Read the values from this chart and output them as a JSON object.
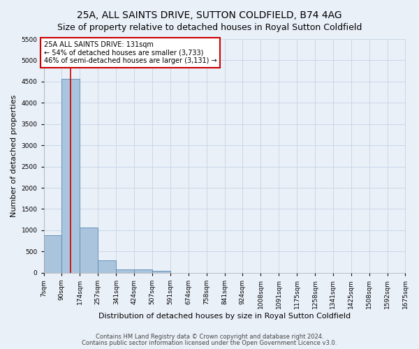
{
  "title": "25A, ALL SAINTS DRIVE, SUTTON COLDFIELD, B74 4AG",
  "subtitle": "Size of property relative to detached houses in Royal Sutton Coldfield",
  "xlabel": "Distribution of detached houses by size in Royal Sutton Coldfield",
  "ylabel": "Number of detached properties",
  "bin_edges": [
    7,
    90,
    174,
    257,
    341,
    424,
    507,
    591,
    674,
    758,
    841,
    924,
    1008,
    1091,
    1175,
    1258,
    1341,
    1425,
    1508,
    1592,
    1675
  ],
  "bar_heights": [
    880,
    4560,
    1060,
    290,
    80,
    80,
    50,
    0,
    0,
    0,
    0,
    0,
    0,
    0,
    0,
    0,
    0,
    0,
    0,
    0
  ],
  "bar_color": "#aac4dd",
  "bar_edge_color": "#5a8ab0",
  "grid_color": "#c8d8e8",
  "background_color": "#eaf0f8",
  "property_size": 131,
  "property_line_color": "#cc0000",
  "annotation_text": "25A ALL SAINTS DRIVE: 131sqm\n← 54% of detached houses are smaller (3,733)\n46% of semi-detached houses are larger (3,131) →",
  "annotation_box_color": "#ffffff",
  "annotation_border_color": "#cc0000",
  "ylim": [
    0,
    5500
  ],
  "yticks": [
    0,
    500,
    1000,
    1500,
    2000,
    2500,
    3000,
    3500,
    4000,
    4500,
    5000,
    5500
  ],
  "tick_labels": [
    "7sqm",
    "90sqm",
    "174sqm",
    "257sqm",
    "341sqm",
    "424sqm",
    "507sqm",
    "591sqm",
    "674sqm",
    "758sqm",
    "841sqm",
    "924sqm",
    "1008sqm",
    "1091sqm",
    "1175sqm",
    "1258sqm",
    "1341sqm",
    "1425sqm",
    "1508sqm",
    "1592sqm",
    "1675sqm"
  ],
  "footer1": "Contains HM Land Registry data © Crown copyright and database right 2024.",
  "footer2": "Contains public sector information licensed under the Open Government Licence v3.0.",
  "title_fontsize": 10,
  "subtitle_fontsize": 9,
  "label_fontsize": 8,
  "tick_fontsize": 6.5,
  "annotation_fontsize": 7,
  "footer_fontsize": 6
}
